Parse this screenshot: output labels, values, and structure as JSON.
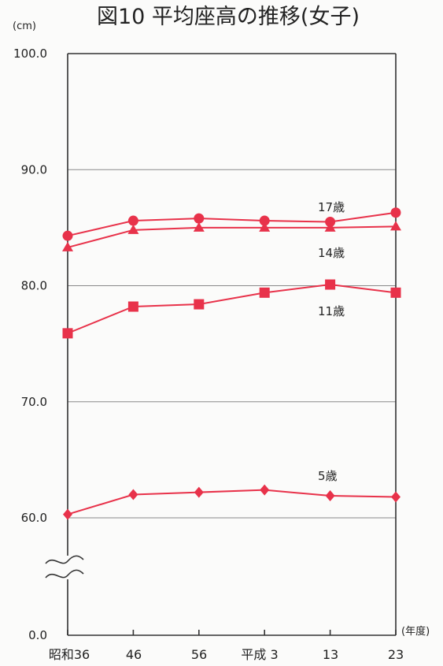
{
  "chart_data": {
    "type": "line",
    "title": "図10 平均座高の推移(女子)",
    "ylabel": "(cm)",
    "xlabel": "(年度)",
    "y_tick_labels": [
      "0.0",
      "60.0",
      "70.0",
      "80.0",
      "90.0",
      "100.0"
    ],
    "axis_break": true,
    "ylim": [
      60,
      100
    ],
    "grid": true,
    "categories": [
      "昭和36",
      "46",
      "56",
      "平成 3",
      "13",
      "23"
    ],
    "color": "#e8324a",
    "series": [
      {
        "name": "17歳",
        "marker": "circle",
        "values": [
          84.3,
          85.6,
          85.8,
          85.6,
          85.5,
          86.3
        ]
      },
      {
        "name": "14歳",
        "marker": "triangle",
        "values": [
          83.3,
          84.8,
          85.0,
          85.0,
          85.0,
          85.1
        ]
      },
      {
        "name": "11歳",
        "marker": "square",
        "values": [
          75.9,
          78.2,
          78.4,
          79.4,
          80.1,
          79.4
        ]
      },
      {
        "name": "5歳",
        "marker": "diamond",
        "values": [
          60.3,
          62.0,
          62.2,
          62.4,
          61.9,
          61.8
        ]
      }
    ]
  }
}
